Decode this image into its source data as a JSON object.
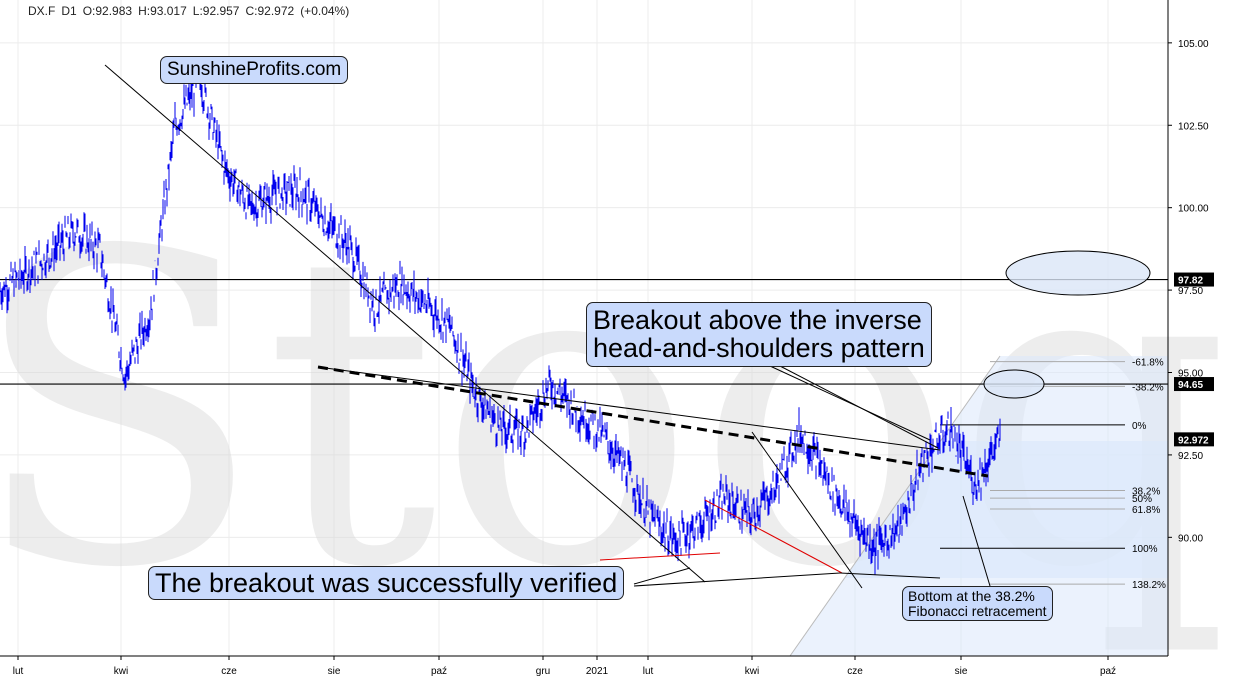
{
  "header": {
    "symbol": "DX.F",
    "interval": "D1",
    "open": "O:92.983",
    "high": "H:93.017",
    "low": "L:92.957",
    "close": "C:92.972",
    "change": "(+0.04%)"
  },
  "watermark_logo": "Stooq",
  "annotations": {
    "brand": "SunshineProfits.com",
    "breakout_hs_line1": "Breakout above the inverse",
    "breakout_hs_line2": "head-and-shoulders pattern",
    "verified": "The breakout was successfully verified",
    "bottom_line1": "Bottom at the 38.2%",
    "bottom_line2": "Fibonacci retracement"
  },
  "colors": {
    "price": "#0000ee",
    "red_lines": "#e00000",
    "fib_fill": "#dbe8fb",
    "callout": "#c9dafc",
    "ellipse": "#dbe6f8"
  },
  "chart_data": {
    "type": "line",
    "title": "",
    "xlabel": "",
    "ylabel": "",
    "ylim": [
      86.4,
      106.3
    ],
    "x_ticks": [
      "lut",
      "kwi",
      "cze",
      "sie",
      "paź",
      "gru",
      "2021",
      "lut",
      "kwi",
      "cze",
      "sie",
      "paź"
    ],
    "y_ticks": [
      "105.00",
      "102.50",
      "100.00",
      "97.50",
      "95.00",
      "92.50",
      "90.00"
    ],
    "y_tick_values": [
      105.0,
      102.5,
      100.0,
      97.5,
      95.0,
      92.5,
      90.0
    ],
    "price_tags": [
      {
        "label": "97.82",
        "value": 97.82
      },
      {
        "label": "94.65",
        "value": 94.65
      },
      {
        "label": "92.972",
        "value": 92.972
      }
    ],
    "fib_levels": [
      {
        "label": "-61.8%",
        "value": 95.33
      },
      {
        "label": "-38.2%",
        "value": 94.58
      },
      {
        "label": "0%",
        "value": 93.41
      },
      {
        "label": "38.2%",
        "value": 91.42
      },
      {
        "label": "50%",
        "value": 91.19
      },
      {
        "label": "61.8%",
        "value": 90.86
      },
      {
        "label": "100%",
        "value": 89.67
      },
      {
        "label": "138.2%",
        "value": 88.58
      }
    ],
    "series": [
      {
        "t": [
          0,
          0.5,
          1,
          1.5,
          2,
          2.5,
          3,
          3.5,
          4,
          4.5,
          5,
          5.5,
          6,
          6.5,
          7,
          7.5,
          8,
          8.5,
          9,
          9.5,
          10,
          10.5,
          11,
          11.5,
          12,
          12.5,
          13,
          13.5,
          14,
          14.5,
          15,
          15.5,
          16,
          16.5,
          17,
          17.5,
          18,
          18.5,
          19,
          19.5,
          20
        ],
        "values": [
          97.5,
          98.0,
          98.6,
          99.3,
          98.7,
          94.9,
          96.8,
          102.5,
          103.9,
          101.2,
          100.0,
          100.4,
          100.5,
          99.6,
          98.8,
          97.0,
          97.7,
          97.1,
          96.4,
          94.4,
          93.3,
          93.2,
          94.7,
          93.9,
          93.2,
          92.1,
          90.6,
          89.9,
          90.4,
          91.2,
          90.6,
          91.5,
          93.2,
          91.9,
          90.6,
          89.7,
          90.3,
          92.5,
          93.3,
          91.6,
          93.0
        ]
      }
    ]
  }
}
